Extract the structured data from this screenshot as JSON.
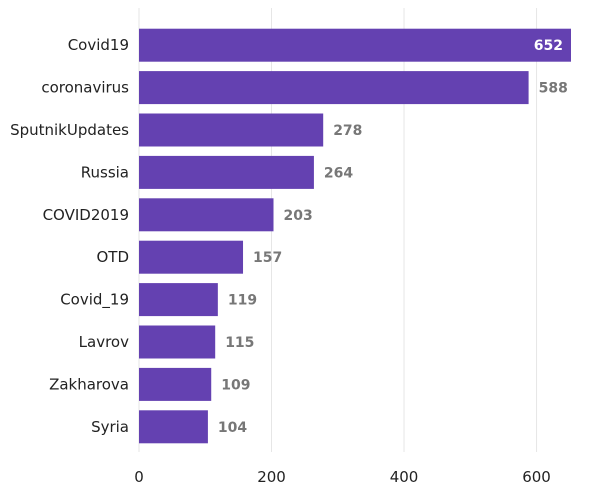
{
  "chart_data": {
    "type": "bar",
    "orientation": "horizontal",
    "categories": [
      "Covid19",
      "coronavirus",
      "SputnikUpdates",
      "Russia",
      "COVID2019",
      "OTD",
      "Covid_19",
      "Lavrov",
      "Zakharova",
      "Syria"
    ],
    "values": [
      652,
      588,
      278,
      264,
      203,
      157,
      119,
      115,
      109,
      104
    ],
    "value_labels": [
      "652",
      "588",
      "278",
      "264",
      "203",
      "157",
      "119",
      "115",
      "109",
      "104"
    ],
    "x_ticks": [
      0,
      200,
      400,
      600
    ],
    "x_tick_labels": [
      "0",
      "200",
      "400",
      "600"
    ],
    "xlim": [
      0,
      652
    ],
    "grid": "vertical",
    "legend": "none",
    "bar_color": "#6441B1",
    "value_label_color": "#777777",
    "value_label_inside_color": "#ffffff"
  }
}
